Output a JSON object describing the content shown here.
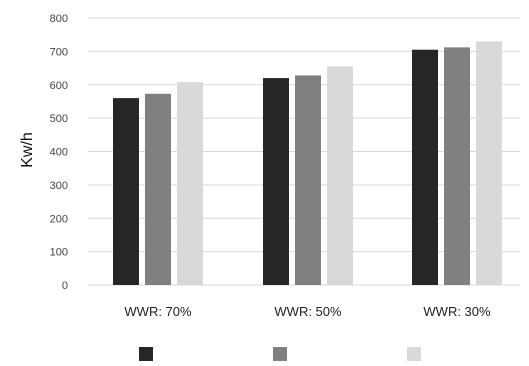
{
  "chart_data": {
    "type": "bar",
    "title": "",
    "xlabel": "",
    "ylabel": "Kw/h",
    "categories": [
      "WWR: 70%",
      "WWR: 50%",
      "WWR: 30%"
    ],
    "series": [
      {
        "values": [
          560,
          620,
          705
        ],
        "color": "#262626"
      },
      {
        "values": [
          573,
          628,
          712
        ],
        "color": "#808080"
      },
      {
        "values": [
          608,
          655,
          730
        ],
        "color": "#d9d9d9"
      }
    ],
    "ylim": [
      0,
      800
    ],
    "yticks": [
      "0",
      "100",
      "200",
      "300",
      "400",
      "500",
      "600",
      "700",
      "800"
    ],
    "grid": true,
    "legend_position": "bottom"
  }
}
